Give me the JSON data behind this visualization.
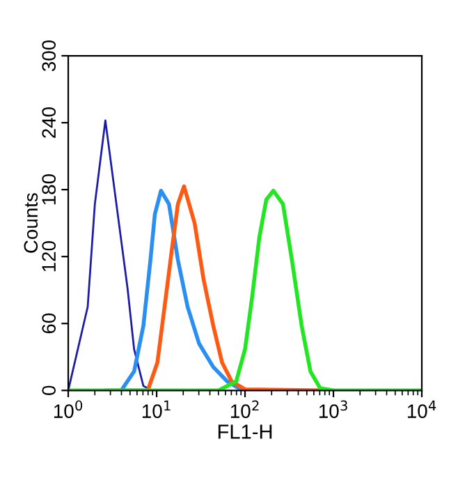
{
  "chart_data": {
    "type": "line",
    "xlabel": "FL1-H",
    "ylabel": "Counts",
    "log": "x",
    "xlim": [
      1,
      10000
    ],
    "xticks": [
      {
        "value": 1,
        "label": "10$^{0}$"
      },
      {
        "value": 10,
        "label": "10$^{1}$"
      },
      {
        "value": 100,
        "label": "10$^{2}$"
      },
      {
        "value": 1000,
        "label": "10$^{3}$"
      },
      {
        "value": 10000,
        "label": "10$^{4}$"
      }
    ],
    "ylim": [
      0,
      300
    ],
    "yticks": [
      0,
      60,
      120,
      180,
      240,
      300
    ],
    "marker": "none",
    "line_style": "solid",
    "series": [
      {
        "color": "#1c1ca8",
        "x": [
          1,
          1.66,
          2.0,
          2.63,
          3.63,
          4.68,
          5.56,
          7.08,
          8.9
        ],
        "values": [
          0,
          75,
          167,
          242,
          158,
          92,
          37,
          4,
          0
        ]
      },
      {
        "color": "#2a8ff0",
        "x": [
          3.98,
          5.56,
          7.08,
          8.51,
          9.55,
          11.2,
          13.8,
          17.4,
          22.4,
          30.2,
          43.7,
          63.1,
          89.1
        ],
        "values": [
          0,
          17,
          58,
          117,
          158,
          179,
          167,
          117,
          75,
          42,
          21,
          8,
          1
        ]
      },
      {
        "color": "#ff5a14",
        "x": [
          2.69,
          7.94,
          10.2,
          12.3,
          14.8,
          17.4,
          20.4,
          26.9,
          33.9,
          43.7,
          55,
          70.8,
          100,
          794
        ],
        "values": [
          0,
          0,
          25,
          75,
          125,
          167,
          183,
          150,
          100,
          58,
          25,
          8,
          1,
          0
        ]
      },
      {
        "color": "#22e622",
        "x": [
          1,
          50,
          79.4,
          100,
          120,
          145,
          174,
          209,
          269,
          339,
          437,
          550,
          708,
          1000,
          10000
        ],
        "values": [
          0,
          0,
          8,
          37,
          83,
          137,
          171,
          179,
          167,
          117,
          58,
          17,
          2,
          0,
          0
        ]
      }
    ]
  }
}
